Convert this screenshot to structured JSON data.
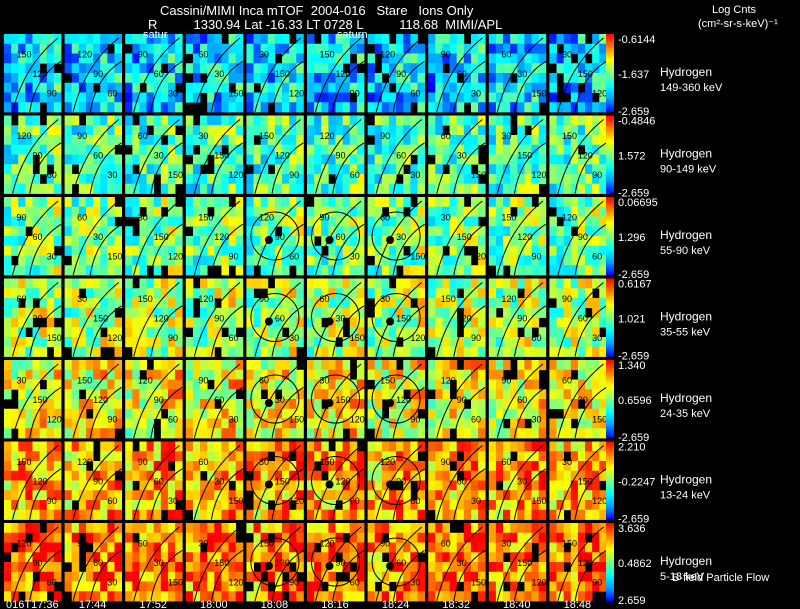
{
  "header": {
    "title": "Cassini/MIMI Inca mTOF  2004-016   Stare   Ions Only",
    "ephemeris": "R          1330.94 Lat -16.33 LT 0728 L          118.68  MIMI/APL",
    "units_line1": "Log Cnts",
    "units_line2": "(cm²-sr-s-keV)⁻¹",
    "saturn_label_1": "satur",
    "saturn_label_2": "saturn",
    "footer": "B-field Particle Flow"
  },
  "chart_data": {
    "type": "heatmap",
    "title": "Cassini/MIMI Inca mTOF  2004-016   Stare   Ions Only",
    "time_labels": [
      "016T17:36",
      "17:44",
      "17:52",
      "18:00",
      "18:08",
      "18:16",
      "18:24",
      "18:32",
      "18:40",
      "18:48"
    ],
    "rows": [
      {
        "species": "Hydrogen",
        "energy": "149-360 keV",
        "max": "-0.6144",
        "mid": "-1.637",
        "min": "-2.659",
        "level": 0.22
      },
      {
        "species": "Hydrogen",
        "energy": "90-149 keV",
        "max": "-0.4846",
        "mid": "1.572",
        "min": "-2.659",
        "level": 0.38
      },
      {
        "species": "Hydrogen",
        "energy": "55-90 keV",
        "max": "0.06695",
        "mid": "1.296",
        "min": "-2.659",
        "level": 0.45
      },
      {
        "species": "Hydrogen",
        "energy": "35-55 keV",
        "max": "0.6167",
        "mid": "1.021",
        "min": "-2.659",
        "level": 0.52
      },
      {
        "species": "Hydrogen",
        "energy": "24-35 keV",
        "max": "1.340",
        "mid": "0.6596",
        "min": "-2.659",
        "level": 0.62
      },
      {
        "species": "Hydrogen",
        "energy": "13-24 keV",
        "max": "2.210",
        "mid": "-0.2247",
        "min": "-2.659",
        "level": 0.74
      },
      {
        "species": "Hydrogen",
        "energy": "5-13 keV",
        "max": "3.636",
        "mid": "0.4862",
        "min": "2.659",
        "level": 0.8
      }
    ],
    "contour_labels": [
      "150",
      "120",
      "90",
      "60",
      "30"
    ],
    "colorscale": [
      "#0000ff",
      "#00a0ff",
      "#00ffff",
      "#7fff7f",
      "#ffff00",
      "#ff8000",
      "#ff0000"
    ]
  }
}
